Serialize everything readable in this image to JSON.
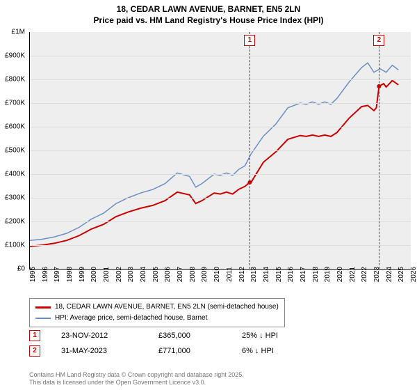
{
  "title_line1": "18, CEDAR LAWN AVENUE, BARNET, EN5 2LN",
  "title_line2": "Price paid vs. HM Land Registry's House Price Index (HPI)",
  "chart": {
    "type": "line",
    "background_color": "#eeeeee",
    "grid_color": "#dddddd",
    "x_start": 1995,
    "x_end": 2026,
    "x_ticks": [
      1995,
      1996,
      1997,
      1998,
      1999,
      2000,
      2001,
      2002,
      2003,
      2004,
      2005,
      2006,
      2007,
      2008,
      2009,
      2010,
      2011,
      2012,
      2013,
      2014,
      2015,
      2016,
      2017,
      2018,
      2019,
      2020,
      2021,
      2022,
      2023,
      2024,
      2025,
      2026
    ],
    "y_min": 0,
    "y_max": 1000000,
    "y_ticks": [
      {
        "v": 0,
        "label": "£0"
      },
      {
        "v": 100000,
        "label": "£100K"
      },
      {
        "v": 200000,
        "label": "£200K"
      },
      {
        "v": 300000,
        "label": "£300K"
      },
      {
        "v": 400000,
        "label": "£400K"
      },
      {
        "v": 500000,
        "label": "£500K"
      },
      {
        "v": 600000,
        "label": "£600K"
      },
      {
        "v": 700000,
        "label": "£700K"
      },
      {
        "v": 800000,
        "label": "£800K"
      },
      {
        "v": 900000,
        "label": "£900K"
      },
      {
        "v": 1000000,
        "label": "£1M"
      }
    ],
    "series_hpi": {
      "color": "#6a8fc5",
      "width": 1.5,
      "data": [
        [
          1995,
          120000
        ],
        [
          1996,
          125000
        ],
        [
          1997,
          135000
        ],
        [
          1998,
          150000
        ],
        [
          1999,
          175000
        ],
        [
          2000,
          210000
        ],
        [
          2001,
          235000
        ],
        [
          2002,
          275000
        ],
        [
          2003,
          300000
        ],
        [
          2004,
          320000
        ],
        [
          2005,
          335000
        ],
        [
          2006,
          360000
        ],
        [
          2007,
          405000
        ],
        [
          2008,
          390000
        ],
        [
          2008.5,
          345000
        ],
        [
          2009,
          360000
        ],
        [
          2010,
          400000
        ],
        [
          2010.5,
          395000
        ],
        [
          2011,
          405000
        ],
        [
          2011.5,
          395000
        ],
        [
          2012,
          420000
        ],
        [
          2012.5,
          435000
        ],
        [
          2013,
          485000
        ],
        [
          2014,
          560000
        ],
        [
          2015,
          610000
        ],
        [
          2016,
          680000
        ],
        [
          2017,
          700000
        ],
        [
          2017.5,
          695000
        ],
        [
          2018,
          705000
        ],
        [
          2018.5,
          695000
        ],
        [
          2019,
          705000
        ],
        [
          2019.5,
          695000
        ],
        [
          2020,
          720000
        ],
        [
          2021,
          790000
        ],
        [
          2022,
          850000
        ],
        [
          2022.5,
          870000
        ],
        [
          2023,
          830000
        ],
        [
          2023.5,
          845000
        ],
        [
          2024,
          830000
        ],
        [
          2024.5,
          860000
        ],
        [
          2025,
          840000
        ]
      ]
    },
    "series_property": {
      "color": "#cc0000",
      "width": 2,
      "data": [
        [
          1995,
          95000
        ],
        [
          1996,
          100000
        ],
        [
          1997,
          108000
        ],
        [
          1998,
          120000
        ],
        [
          1999,
          140000
        ],
        [
          2000,
          168000
        ],
        [
          2001,
          188000
        ],
        [
          2002,
          220000
        ],
        [
          2003,
          240000
        ],
        [
          2004,
          256000
        ],
        [
          2005,
          268000
        ],
        [
          2006,
          288000
        ],
        [
          2007,
          324000
        ],
        [
          2008,
          312000
        ],
        [
          2008.5,
          276000
        ],
        [
          2009,
          288000
        ],
        [
          2010,
          320000
        ],
        [
          2010.5,
          316000
        ],
        [
          2011,
          324000
        ],
        [
          2011.5,
          316000
        ],
        [
          2012,
          336000
        ],
        [
          2012.5,
          348000
        ],
        [
          2012.9,
          365000
        ],
        [
          2013,
          365000
        ],
        [
          2014,
          450000
        ],
        [
          2015,
          493000
        ],
        [
          2016,
          547000
        ],
        [
          2017,
          563000
        ],
        [
          2017.5,
          559000
        ],
        [
          2018,
          565000
        ],
        [
          2018.5,
          559000
        ],
        [
          2019,
          565000
        ],
        [
          2019.5,
          559000
        ],
        [
          2020,
          576000
        ],
        [
          2021,
          637000
        ],
        [
          2022,
          685000
        ],
        [
          2022.5,
          690000
        ],
        [
          2023,
          668000
        ],
        [
          2023.2,
          680000
        ],
        [
          2023.42,
          771000
        ],
        [
          2023.8,
          782000
        ],
        [
          2024,
          768000
        ],
        [
          2024.5,
          795000
        ],
        [
          2025,
          777000
        ]
      ]
    },
    "markers": [
      {
        "n": "1",
        "x": 2012.9,
        "yv": 365000
      },
      {
        "n": "2",
        "x": 2023.42,
        "yv": 771000
      }
    ]
  },
  "legend": {
    "property_label": "18, CEDAR LAWN AVENUE, BARNET, EN5 2LN (semi-detached house)",
    "property_color": "#cc0000",
    "hpi_label": "HPI: Average price, semi-detached house, Barnet",
    "hpi_color": "#6a8fc5"
  },
  "events": [
    {
      "n": "1",
      "date": "23-NOV-2012",
      "price": "£365,000",
      "delta": "25% ↓ HPI"
    },
    {
      "n": "2",
      "date": "31-MAY-2023",
      "price": "£771,000",
      "delta": "6% ↓ HPI"
    }
  ],
  "copyright_line1": "Contains HM Land Registry data © Crown copyright and database right 2025.",
  "copyright_line2": "This data is licensed under the Open Government Licence v3.0."
}
